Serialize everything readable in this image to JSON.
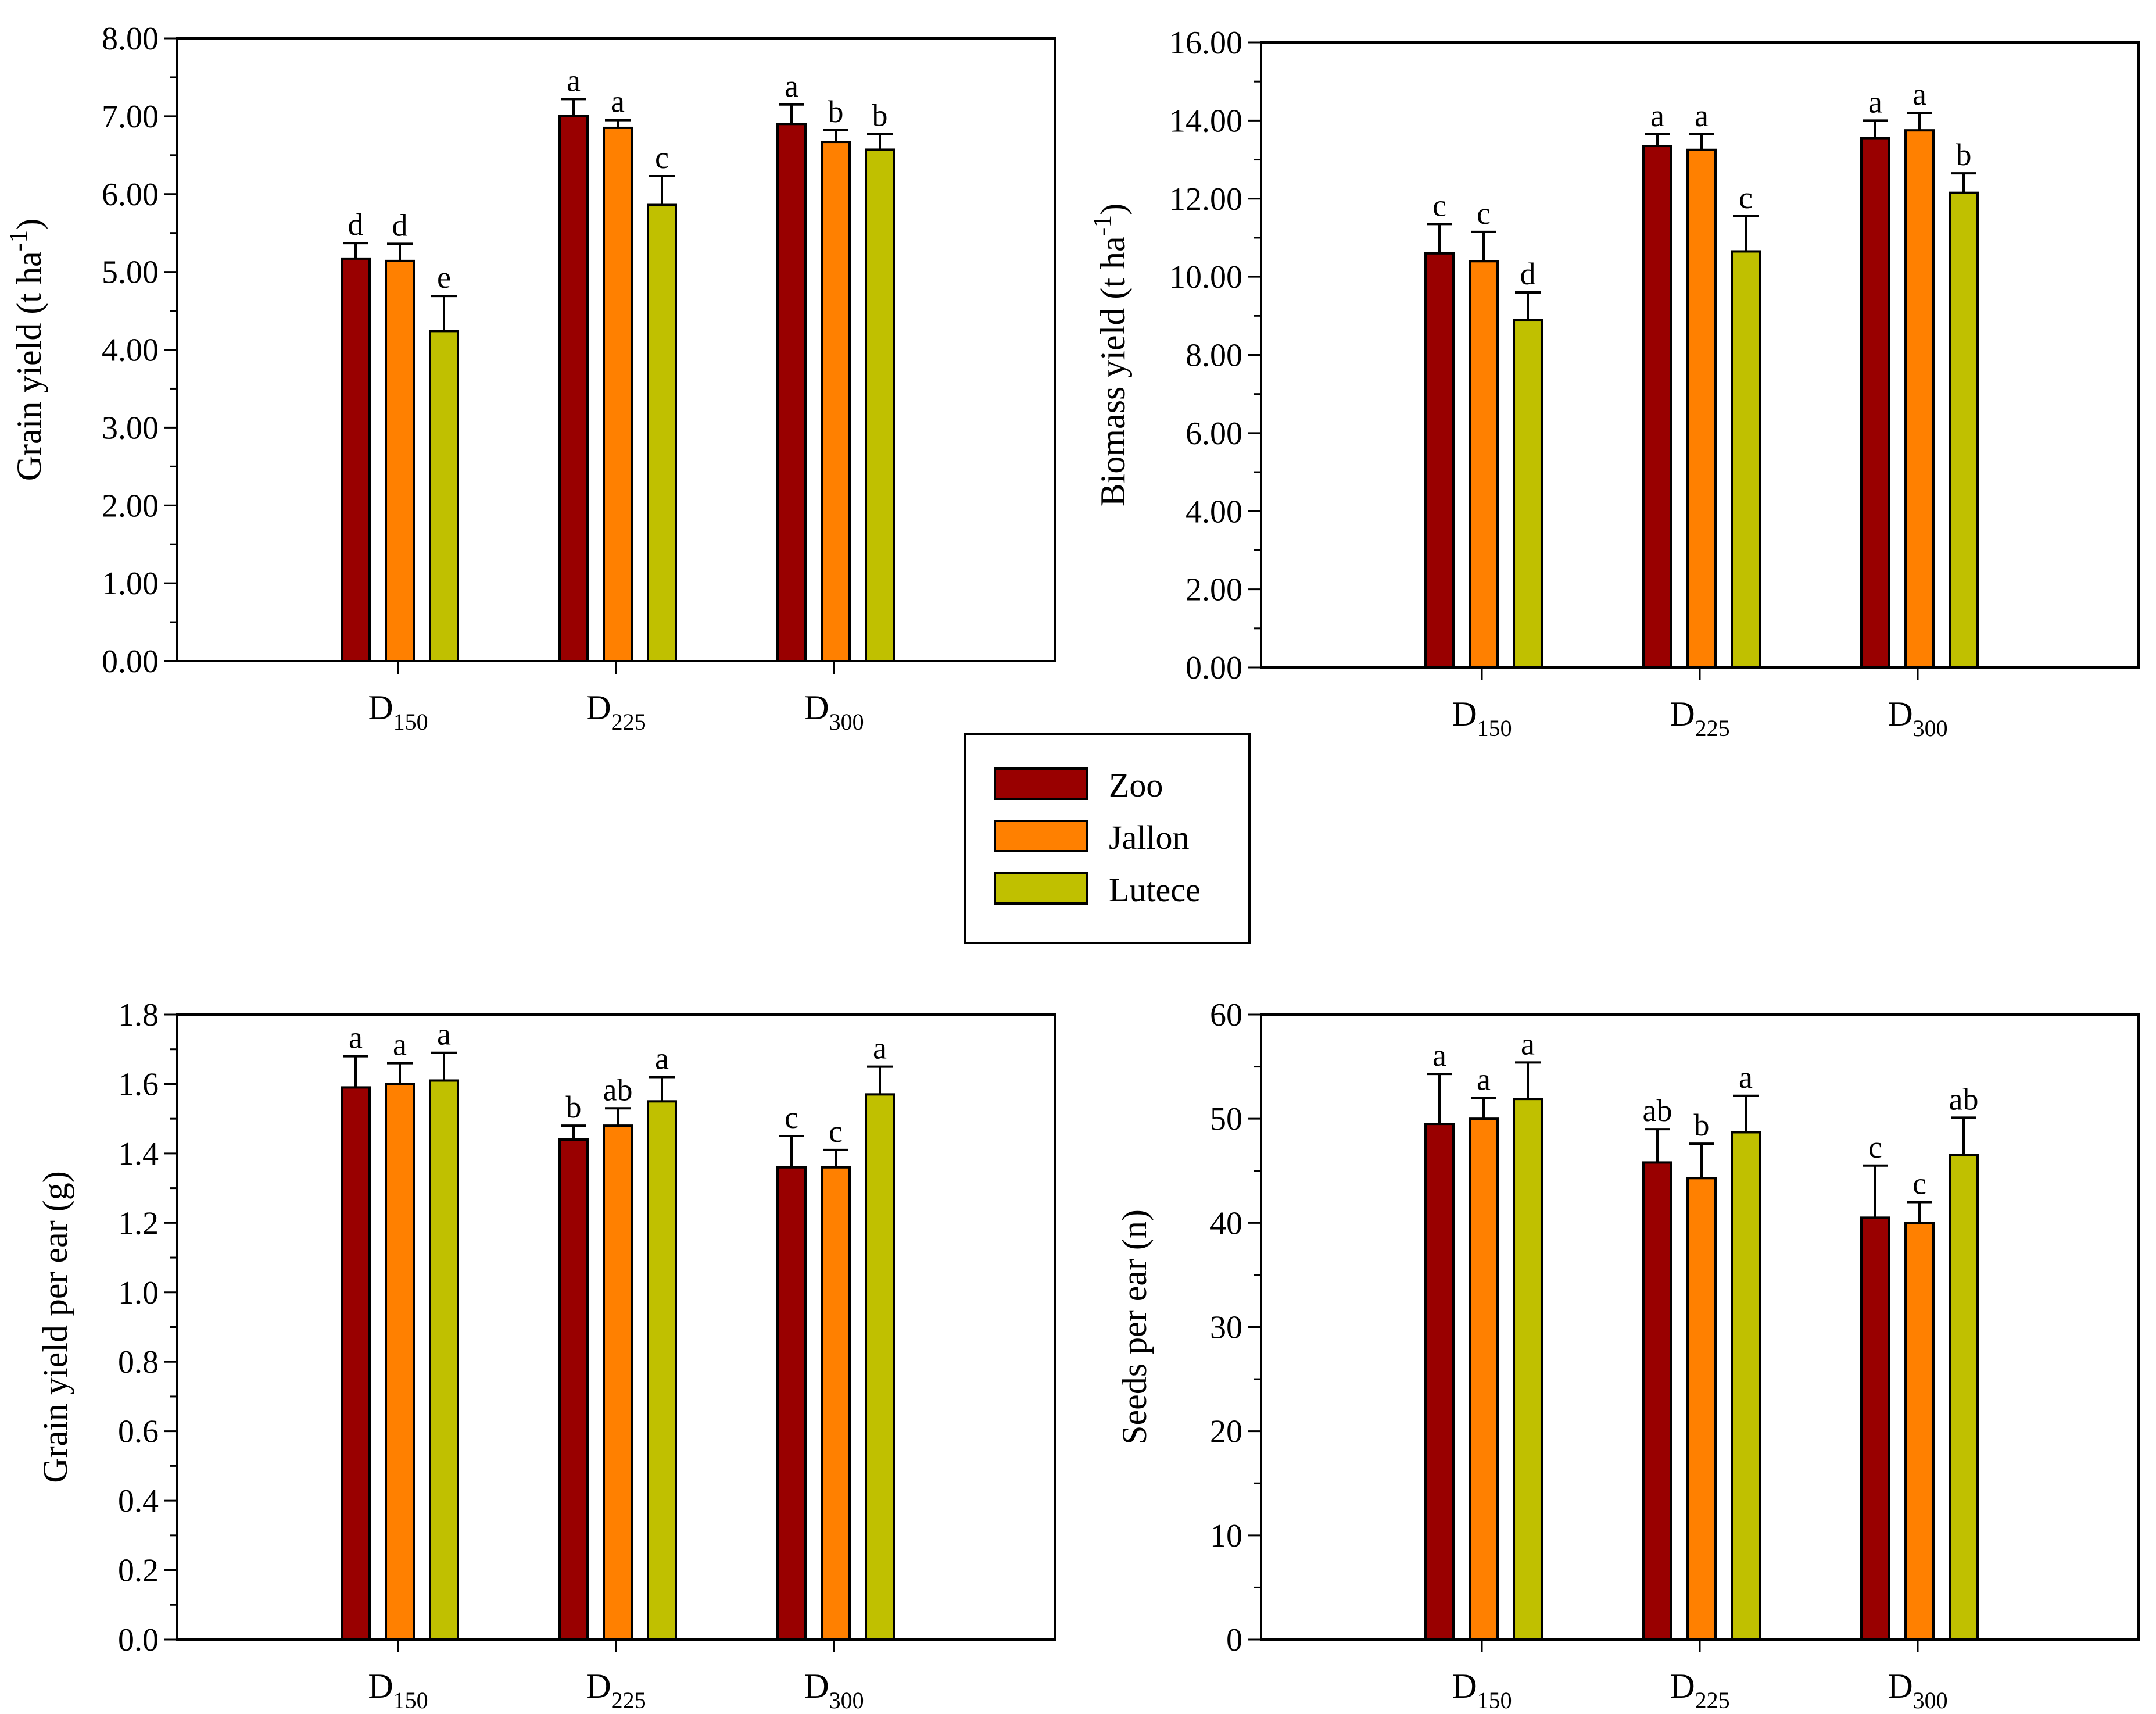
{
  "chart_data": [
    {
      "type": "bar",
      "id": "grain-yield",
      "ylabel": "Grain yield (t ha",
      "ylabel_sup": "-1",
      "ylabel_tail": ")",
      "ylim": [
        0,
        8
      ],
      "yticks": [
        0,
        1,
        2,
        3,
        4,
        5,
        6,
        7,
        8
      ],
      "ytick_labels": [
        "0.00",
        "1.00",
        "2.00",
        "3.00",
        "4.00",
        "5.00",
        "6.00",
        "7.00",
        "8.00"
      ],
      "categories": [
        {
          "main": "D",
          "sub": "150"
        },
        {
          "main": "D",
          "sub": "225"
        },
        {
          "main": "D",
          "sub": "300"
        }
      ],
      "series": [
        {
          "name": "Zoo",
          "values": [
            5.17,
            7.0,
            6.9
          ],
          "errors": [
            0.2,
            0.22,
            0.25
          ],
          "labels": [
            "d",
            "a",
            "a"
          ]
        },
        {
          "name": "Jallon",
          "values": [
            5.14,
            6.85,
            6.67
          ],
          "errors": [
            0.22,
            0.1,
            0.15
          ],
          "labels": [
            "d",
            "a",
            "b"
          ]
        },
        {
          "name": "Lutece",
          "values": [
            4.24,
            5.86,
            6.57
          ],
          "errors": [
            0.45,
            0.37,
            0.2
          ],
          "labels": [
            "e",
            "c",
            "b"
          ]
        }
      ]
    },
    {
      "type": "bar",
      "id": "biomass-yield",
      "ylabel": "Biomass yield (t ha",
      "ylabel_sup": "-1",
      "ylabel_tail": ")",
      "ylim": [
        0,
        16
      ],
      "yticks": [
        0,
        2,
        4,
        6,
        8,
        10,
        12,
        14,
        16
      ],
      "ytick_labels": [
        "0.00",
        "2.00",
        "4.00",
        "6.00",
        "8.00",
        "10.00",
        "12.00",
        "14.00",
        "16.00"
      ],
      "categories": [
        {
          "main": "D",
          "sub": "150"
        },
        {
          "main": "D",
          "sub": "225"
        },
        {
          "main": "D",
          "sub": "300"
        }
      ],
      "series": [
        {
          "name": "Zoo",
          "values": [
            10.6,
            13.35,
            13.55
          ],
          "errors": [
            0.75,
            0.3,
            0.45
          ],
          "labels": [
            "c",
            "a",
            "a"
          ]
        },
        {
          "name": "Jallon",
          "values": [
            10.4,
            13.25,
            13.75
          ],
          "errors": [
            0.75,
            0.4,
            0.45
          ],
          "labels": [
            "c",
            "a",
            "a"
          ]
        },
        {
          "name": "Lutece",
          "values": [
            8.9,
            10.65,
            12.15
          ],
          "errors": [
            0.7,
            0.9,
            0.5
          ],
          "labels": [
            "d",
            "c",
            "b"
          ]
        }
      ]
    },
    {
      "type": "bar",
      "id": "grain-per-ear",
      "ylabel": "Grain yield per ear (g)",
      "ylabel_sup": "",
      "ylabel_tail": "",
      "ylim": [
        0,
        1.8
      ],
      "yticks": [
        0,
        0.2,
        0.4,
        0.6,
        0.8,
        1.0,
        1.2,
        1.4,
        1.6,
        1.8
      ],
      "ytick_labels": [
        "0.0",
        "0.2",
        "0.4",
        "0.6",
        "0.8",
        "1.0",
        "1.2",
        "1.4",
        "1.6",
        "1.8"
      ],
      "categories": [
        {
          "main": "D",
          "sub": "150"
        },
        {
          "main": "D",
          "sub": "225"
        },
        {
          "main": "D",
          "sub": "300"
        }
      ],
      "series": [
        {
          "name": "Zoo",
          "values": [
            1.59,
            1.44,
            1.36
          ],
          "errors": [
            0.09,
            0.04,
            0.09
          ],
          "labels": [
            "a",
            "b",
            "c"
          ]
        },
        {
          "name": "Jallon",
          "values": [
            1.6,
            1.48,
            1.36
          ],
          "errors": [
            0.06,
            0.05,
            0.05
          ],
          "labels": [
            "a",
            "ab",
            "c"
          ]
        },
        {
          "name": "Lutece",
          "values": [
            1.61,
            1.55,
            1.57
          ],
          "errors": [
            0.08,
            0.07,
            0.08
          ],
          "labels": [
            "a",
            "a",
            "a"
          ]
        }
      ]
    },
    {
      "type": "bar",
      "id": "seeds-per-ear",
      "ylabel": "Seeds per ear (n)",
      "ylabel_sup": "",
      "ylabel_tail": "",
      "ylim": [
        0,
        60
      ],
      "yticks": [
        0,
        10,
        20,
        30,
        40,
        50,
        60
      ],
      "ytick_labels": [
        "0",
        "10",
        "20",
        "30",
        "40",
        "50",
        "60"
      ],
      "categories": [
        {
          "main": "D",
          "sub": "150"
        },
        {
          "main": "D",
          "sub": "225"
        },
        {
          "main": "D",
          "sub": "300"
        }
      ],
      "series": [
        {
          "name": "Zoo",
          "values": [
            49.5,
            45.8,
            40.5
          ],
          "errors": [
            4.8,
            3.2,
            5.0
          ],
          "labels": [
            "a",
            "ab",
            "c"
          ]
        },
        {
          "name": "Jallon",
          "values": [
            50.0,
            44.3,
            40.0
          ],
          "errors": [
            2.0,
            3.3,
            2.0
          ],
          "labels": [
            "a",
            "b",
            "c"
          ]
        },
        {
          "name": "Lutece",
          "values": [
            51.9,
            48.7,
            46.5
          ],
          "errors": [
            3.5,
            3.5,
            3.6
          ],
          "labels": [
            "a",
            "a",
            "ab"
          ]
        }
      ]
    }
  ],
  "legend": {
    "items": [
      {
        "label": "Zoo",
        "color": "#990000"
      },
      {
        "label": "Jallon",
        "color": "#ff8000"
      },
      {
        "label": "Lutece",
        "color": "#c0c000"
      }
    ]
  },
  "colors": {
    "Zoo": "#990000",
    "Jallon": "#ff8000",
    "Lutece": "#c0c000"
  }
}
